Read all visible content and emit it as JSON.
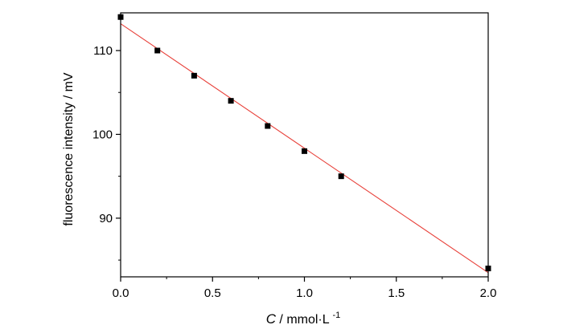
{
  "chart_data": {
    "type": "scatter",
    "title": "",
    "xlabel": {
      "symbol": "C",
      "unit": " / mmol·L",
      "exponent": "-1"
    },
    "ylabel": "fluorescence intensity / mV",
    "xlim": [
      0,
      2.0
    ],
    "ylim": [
      83,
      114.5
    ],
    "x_ticks": [
      0.0,
      0.5,
      1.0,
      1.5,
      2.0
    ],
    "x_tick_labels": [
      "0.0",
      "0.5",
      "1.0",
      "1.5",
      "2.0"
    ],
    "y_ticks": [
      90,
      100,
      110
    ],
    "y_tick_labels": [
      "90",
      "100",
      "110"
    ],
    "grid": false,
    "legend": "none",
    "series": [
      {
        "x": [
          0.0,
          0.2,
          0.4,
          0.6,
          0.8,
          1.0,
          1.2,
          2.0
        ],
        "y": [
          114,
          110,
          107,
          104,
          101,
          98,
          95,
          84
        ],
        "marker": "square",
        "color": "#000000"
      }
    ],
    "fit_line": {
      "x": [
        0.0,
        2.0
      ],
      "y": [
        113.2,
        83.5
      ],
      "color": "#e8413a"
    }
  }
}
